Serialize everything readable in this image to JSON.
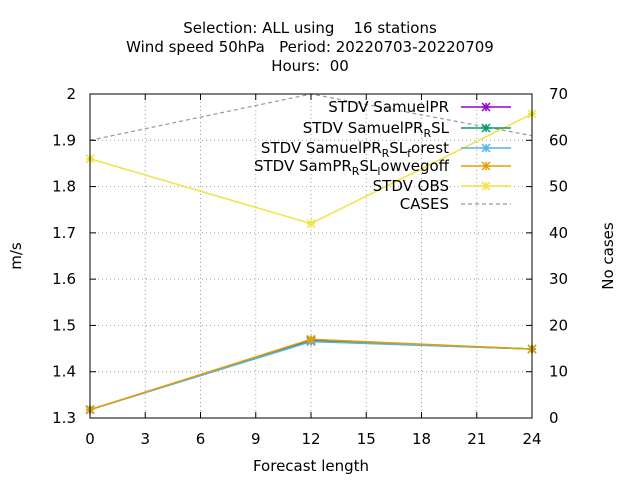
{
  "chart_data": {
    "type": "line",
    "title_lines": [
      "Selection: ALL using    16 stations",
      "Wind speed 50hPa   Period: 20220703-20220709",
      "Hours:  00"
    ],
    "xlabel": "Forecast length",
    "ylabel": "m/s",
    "y2label": "No cases",
    "xlim": [
      0,
      24
    ],
    "ylim": [
      1.3,
      2.0
    ],
    "y2lim": [
      0,
      70
    ],
    "xticks": [
      "0",
      "3",
      "6",
      "9",
      "12",
      "15",
      "18",
      "21",
      "24"
    ],
    "yticks": [
      "1.3",
      "1.4",
      "1.5",
      "1.6",
      "1.7",
      "1.8",
      "1.9",
      "2"
    ],
    "y2ticks": [
      "0",
      "10",
      "20",
      "30",
      "40",
      "50",
      "60",
      "70"
    ],
    "grid": true,
    "legend_position": "top-right",
    "series": [
      {
        "key": "samuelpr",
        "label": [
          {
            "t": "STDV SamuelPR"
          }
        ],
        "color": "#9400d3",
        "marker": "x-star",
        "dashed": false,
        "axis": "y",
        "x": [
          0,
          12,
          24
        ],
        "y": [
          1.318,
          1.468,
          1.449
        ]
      },
      {
        "key": "samuelpr-rsl",
        "label": [
          {
            "t": "STDV SamuelPR"
          },
          {
            "t": "R",
            "sub": true
          },
          {
            "t": "SL"
          }
        ],
        "color": "#009e73",
        "marker": "x-star",
        "dashed": false,
        "axis": "y",
        "x": [
          0,
          12,
          24
        ],
        "y": [
          1.318,
          1.466,
          1.449
        ]
      },
      {
        "key": "samuelpr-rsl-forest",
        "label": [
          {
            "t": "STDV SamuelPR"
          },
          {
            "t": "R",
            "sub": true
          },
          {
            "t": "SL"
          },
          {
            "t": "f",
            "sub": true
          },
          {
            "t": "orest"
          }
        ],
        "color": "#56b4e9",
        "marker": "x-star",
        "dashed": false,
        "axis": "y",
        "x": [
          0,
          12,
          24
        ],
        "y": [
          1.318,
          1.465,
          1.449
        ]
      },
      {
        "key": "sampr-rsl-lowvegoff",
        "label": [
          {
            "t": "STDV SamPR"
          },
          {
            "t": "R",
            "sub": true
          },
          {
            "t": "SL"
          },
          {
            "t": "l",
            "sub": true
          },
          {
            "t": "owvegoff"
          }
        ],
        "color": "#e69f00",
        "marker": "x-star",
        "dashed": false,
        "axis": "y",
        "x": [
          0,
          12,
          24
        ],
        "y": [
          1.318,
          1.47,
          1.449
        ]
      },
      {
        "key": "obs",
        "label": [
          {
            "t": "STDV OBS"
          }
        ],
        "color": "#f0e442",
        "marker": "x-star",
        "dashed": false,
        "axis": "y",
        "x": [
          0,
          12,
          24
        ],
        "y": [
          1.86,
          1.72,
          1.957
        ]
      },
      {
        "key": "cases",
        "label": [
          {
            "t": "CASES"
          }
        ],
        "color": "#999999",
        "marker": "none",
        "dashed": true,
        "axis": "y2",
        "x": [
          0,
          12,
          24
        ],
        "y": [
          60,
          70,
          61
        ]
      }
    ]
  }
}
